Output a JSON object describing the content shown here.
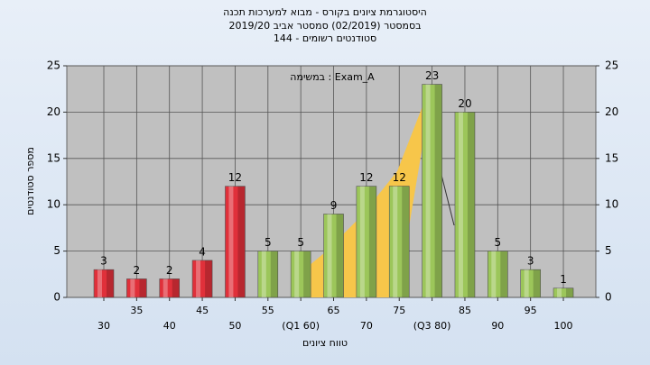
{
  "chart_data": {
    "type": "bar",
    "title": "היסטוגרמת ציונים בקורס - מבוא למערכות תכנה",
    "subtitle": "בסמסטר  (02/2019)  סמסטר אביב  2019/20",
    "subtitle2": "סטודנטים רשומים - 144",
    "annotation": "במשימה : Exam_A",
    "y_label": "מספר סטודנטים",
    "x_label": "טווח ציונים",
    "categories": [
      "30",
      "35",
      "40",
      "45",
      "50",
      "55",
      "(Q1 60)",
      "65",
      "70",
      "75",
      "(Q3 80)",
      "85",
      "90",
      "95",
      "100"
    ],
    "values": [
      3,
      2,
      2,
      4,
      12,
      5,
      5,
      9,
      12,
      12,
      23,
      20,
      5,
      3,
      1
    ],
    "colors": [
      "#e0303a",
      "#e0303a",
      "#e0303a",
      "#e0303a",
      "#e0303a",
      "#9cc65a",
      "#9cc65a",
      "#9cc65a",
      "#9cc65a",
      "#9cc65a",
      "#9cc65a",
      "#9cc65a",
      "#9cc65a",
      "#9cc65a",
      "#9cc65a"
    ],
    "ylim": [
      0,
      25
    ],
    "yticks": [
      0,
      5,
      10,
      15,
      20,
      25
    ],
    "y2lim": [
      0,
      25
    ],
    "y2ticks": [
      0,
      5,
      10,
      15,
      20,
      25
    ],
    "grid": true
  }
}
